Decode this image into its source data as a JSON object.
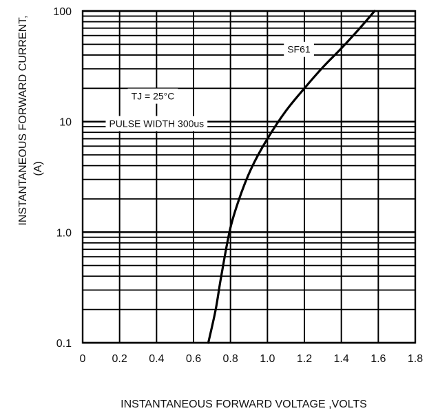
{
  "chart_data": {
    "type": "line",
    "title": "",
    "xlabel": "INSTANTANEOUS FORWARD VOLTAGE ,VOLTS",
    "ylabel": "INSTANTANEOUS FORWARD CURRENT,",
    "ylabel_unit": "(A)",
    "xlim": [
      0,
      1.8
    ],
    "ylim": [
      0.1,
      100
    ],
    "yscale": "log",
    "grid": true,
    "x_ticks": [
      {
        "value": 0,
        "label": "0"
      },
      {
        "value": 0.2,
        "label": "0.2"
      },
      {
        "value": 0.4,
        "label": "0.4"
      },
      {
        "value": 0.6,
        "label": "0.6"
      },
      {
        "value": 0.8,
        "label": "0.8"
      },
      {
        "value": 1.0,
        "label": "1.0"
      },
      {
        "value": 1.2,
        "label": "1.2"
      },
      {
        "value": 1.4,
        "label": "1.4"
      },
      {
        "value": 1.6,
        "label": "1.6"
      },
      {
        "value": 1.8,
        "label": "1.8"
      }
    ],
    "y_ticks": [
      {
        "value": 0.1,
        "label": "0.1"
      },
      {
        "value": 1,
        "label": "1.0"
      },
      {
        "value": 10,
        "label": "10"
      },
      {
        "value": 100,
        "label": "100"
      }
    ],
    "series": [
      {
        "name": "SF61",
        "x": [
          0.68,
          0.72,
          0.75,
          0.8,
          0.86,
          0.92,
          1.0,
          1.1,
          1.2,
          1.3,
          1.4,
          1.5,
          1.58
        ],
        "y": [
          0.1,
          0.2,
          0.4,
          1.1,
          2.3,
          4.0,
          7.0,
          12.5,
          20,
          31,
          46,
          70,
          100
        ]
      }
    ],
    "annotations": [
      {
        "text": "SF61",
        "x": 1.17,
        "y": 45
      },
      {
        "text": "TJ = 25°C",
        "x": 0.38,
        "y": 17
      },
      {
        "text": "PULSE WIDTH 300us",
        "x": 0.4,
        "y": 9.6
      }
    ]
  }
}
